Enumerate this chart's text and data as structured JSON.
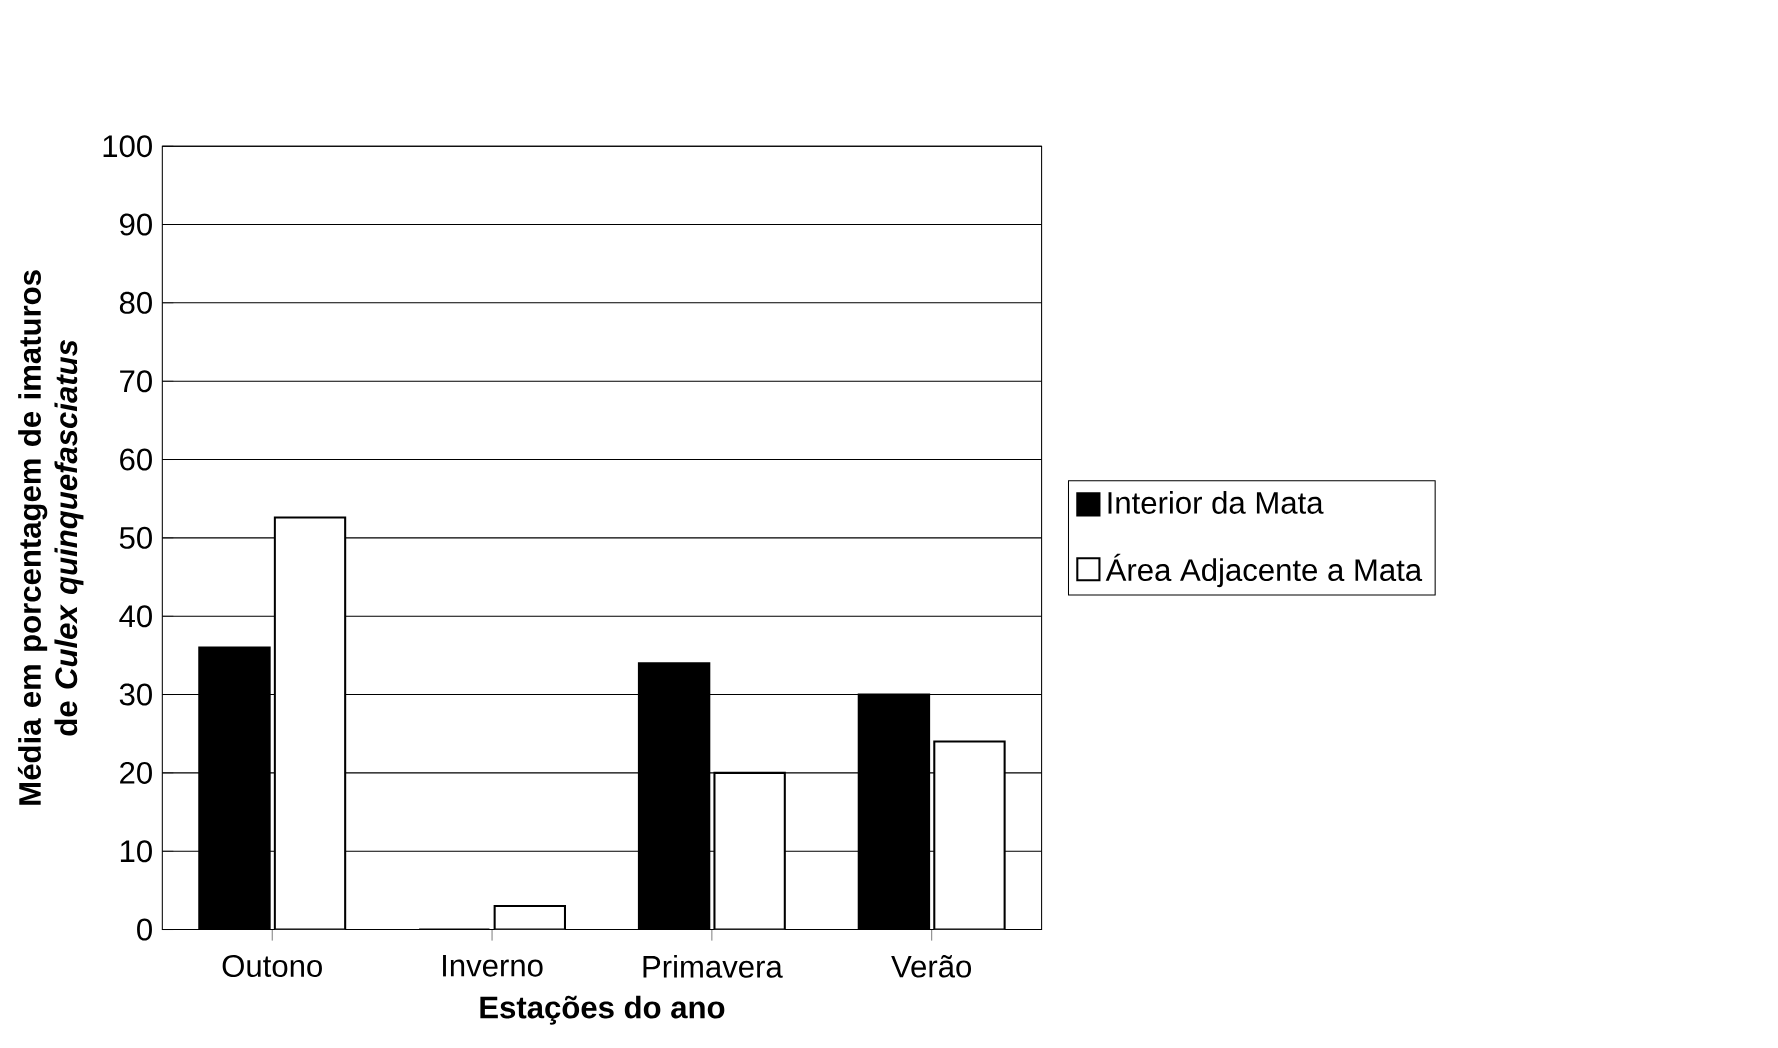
{
  "chart_data": {
    "type": "bar",
    "xlabel": "Estações do ano",
    "ylabel": "Média em porcentagem de imaturos de *Culex quinquefasciatus*",
    "categories": [
      "Outono",
      "Inverno",
      "Primavera",
      "Verão"
    ],
    "series": [
      {
        "name": "Interior da Mata",
        "color": "#000000",
        "values": [
          36,
          0,
          34,
          30
        ]
      },
      {
        "name": "Área Adjacente a Mata",
        "color": "#ffffff",
        "values": [
          52.6,
          3,
          20,
          24
        ]
      }
    ],
    "ylim": [
      0,
      100
    ],
    "yticks": [
      0,
      10,
      20,
      30,
      40,
      50,
      60,
      70,
      80,
      90,
      100
    ],
    "grid": "y",
    "legend": "right"
  }
}
